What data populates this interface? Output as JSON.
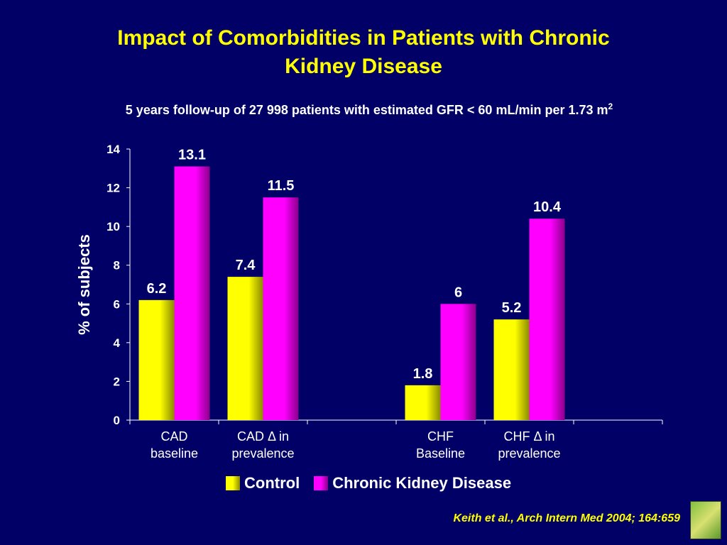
{
  "slide": {
    "title_line1": "Impact of Comorbidities in Patients with Chronic",
    "title_line2": "Kidney Disease",
    "subtitle": "5 years follow-up of 27 998 patients with estimated GFR < 60 mL/min per 1.73 m",
    "subtitle_sup": "2",
    "citation": "Keith et al., Arch Intern Med 2004; 164:659"
  },
  "colors": {
    "background": "#000066",
    "title": "#FFFF00",
    "control": "#FFFF00",
    "ckd": "#FF00FF",
    "text": "#FFFFFF"
  },
  "chart_data": {
    "type": "bar",
    "categories": [
      [
        "CAD",
        "baseline"
      ],
      [
        "CAD Δ in",
        "prevalence"
      ],
      [
        "",
        ""
      ],
      [
        "CHF",
        "Baseline"
      ],
      [
        "CHF Δ in",
        "prevalence"
      ],
      [
        "",
        ""
      ]
    ],
    "series": [
      {
        "name": "Control",
        "values": [
          6.2,
          7.4,
          null,
          1.8,
          5.2,
          null
        ],
        "labels": [
          "6.2",
          "7.4",
          "",
          "1.8",
          "5.2",
          ""
        ]
      },
      {
        "name": "Chronic Kidney Disease",
        "values": [
          13.1,
          11.5,
          null,
          6,
          10.4,
          null
        ],
        "labels": [
          "13.1",
          "11.5",
          "",
          "6",
          "10.4",
          ""
        ]
      }
    ],
    "ylabel": "% of subjects",
    "ylim": [
      0,
      14
    ],
    "yticks": [
      0,
      2,
      4,
      6,
      8,
      10,
      12,
      14
    ],
    "grid": false,
    "legend": "bottom"
  }
}
